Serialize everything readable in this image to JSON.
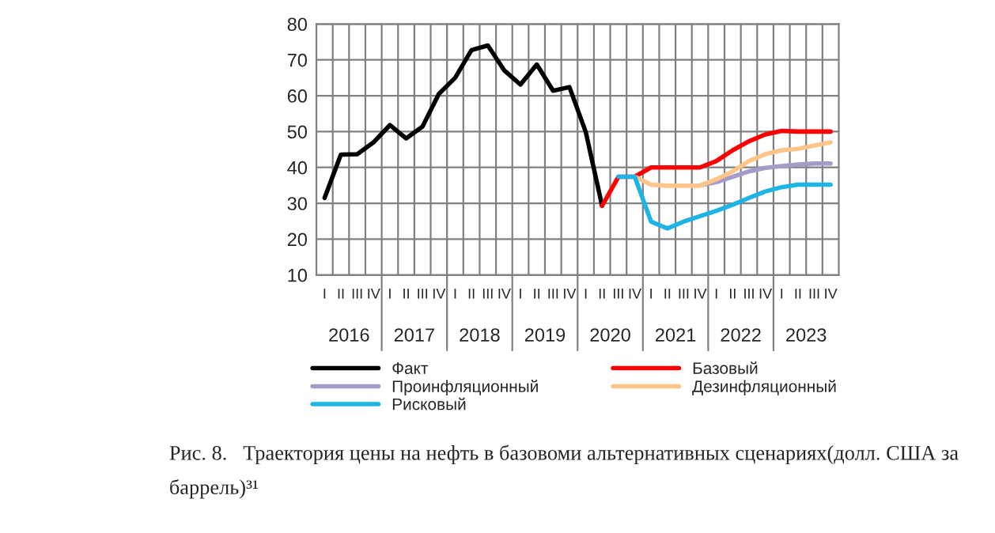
{
  "chart_data": {
    "type": "line",
    "title": "Рис. 8.   Траектория цены на нефть в базовоми альтернативных сценариях(долл. США за баррель)³¹",
    "categories": [
      "I",
      "II",
      "III",
      "IV",
      "I",
      "II",
      "III",
      "IV",
      "I",
      "II",
      "III",
      "IV",
      "I",
      "II",
      "III",
      "IV",
      "I",
      "II",
      "III",
      "IV",
      "I",
      "II",
      "III",
      "IV",
      "I",
      "II",
      "III",
      "IV",
      "I",
      "II",
      "III",
      "IV"
    ],
    "annotations": [
      "2016",
      "2017",
      "2018",
      "2019",
      "2020",
      "2021",
      "2022",
      "2023"
    ],
    "series": [
      {
        "name": "Факт",
        "color": "#000000",
        "values": [
          31.5,
          43.6,
          43.7,
          47.0,
          51.8,
          48.1,
          51.4,
          60.5,
          65.0,
          72.7,
          74.0,
          67.1,
          63.1,
          68.7,
          61.4,
          62.4,
          49.9,
          29.3,
          null,
          null,
          null,
          null,
          null,
          null,
          null,
          null,
          null,
          null,
          null,
          null,
          null,
          null
        ]
      },
      {
        "name": "Базовый",
        "color": "#ff0000",
        "values": [
          null,
          null,
          null,
          null,
          null,
          null,
          null,
          null,
          null,
          null,
          null,
          null,
          null,
          null,
          null,
          null,
          null,
          29.3,
          37.4,
          37.4,
          40.0,
          40.0,
          40.0,
          40.0,
          41.8,
          44.8,
          47.3,
          49.2,
          50.2,
          50.0,
          50.0,
          50.0
        ]
      },
      {
        "name": "Проинфляционный",
        "color": "#a59bc8",
        "values": [
          null,
          null,
          null,
          null,
          null,
          null,
          null,
          null,
          null,
          null,
          null,
          null,
          null,
          null,
          null,
          null,
          null,
          null,
          null,
          null,
          null,
          null,
          null,
          35.0,
          35.9,
          37.4,
          38.9,
          39.9,
          40.4,
          40.8,
          41.1,
          41.1
        ]
      },
      {
        "name": "Дезинфляционный",
        "color": "#fdc58a",
        "values": [
          null,
          null,
          null,
          null,
          null,
          null,
          null,
          null,
          null,
          null,
          null,
          null,
          null,
          null,
          null,
          null,
          null,
          null,
          null,
          37.4,
          35.2,
          34.9,
          34.9,
          34.9,
          36.7,
          38.9,
          41.8,
          43.7,
          44.8,
          45.2,
          46.1,
          47.0
        ]
      },
      {
        "name": "Рисковый",
        "color": "#1eb4e6",
        "values": [
          null,
          null,
          null,
          null,
          null,
          null,
          null,
          null,
          null,
          null,
          null,
          null,
          null,
          null,
          null,
          null,
          null,
          null,
          37.4,
          37.4,
          24.9,
          23.0,
          24.9,
          26.4,
          27.9,
          29.6,
          31.5,
          33.3,
          34.5,
          35.2,
          35.2,
          35.2
        ]
      }
    ],
    "ylim": [
      10,
      80
    ],
    "yticks": [
      10,
      20,
      30,
      40,
      50,
      60,
      70,
      80
    ],
    "grid": true,
    "legend": "bottom",
    "marker": "none",
    "line_style": "solid"
  }
}
